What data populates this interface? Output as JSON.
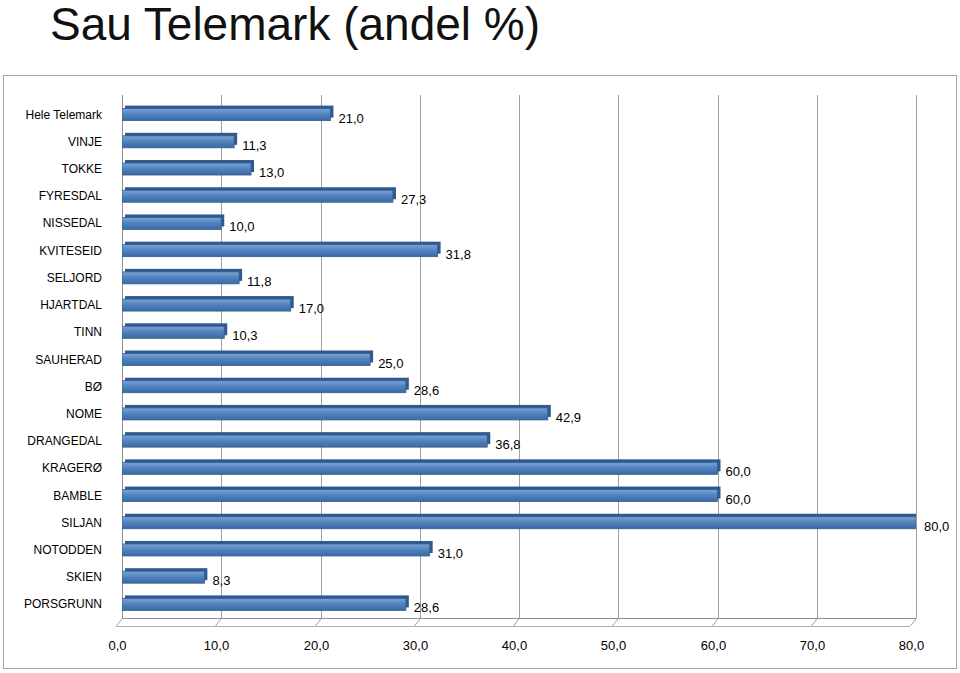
{
  "chart_data": {
    "type": "bar",
    "title": "Sau Telemark (andel %)",
    "orientation": "horizontal",
    "categories": [
      "Hele Telemark",
      "VINJE",
      "TOKKE",
      "FYRESDAL",
      "NISSEDAL",
      "KVITESEID",
      "SELJORD",
      "HJARTDAL",
      "TINN",
      "SAUHERAD",
      "BØ",
      "NOME",
      "DRANGEDAL",
      "KRAGERØ",
      "BAMBLE",
      "SILJAN",
      "NOTODDEN",
      "SKIEN",
      "PORSGRUNN"
    ],
    "values": [
      21.0,
      11.3,
      13.0,
      27.3,
      10.0,
      31.8,
      11.8,
      17.0,
      10.3,
      25.0,
      28.6,
      42.9,
      36.8,
      60.0,
      60.0,
      80.0,
      31.0,
      8.3,
      28.6
    ],
    "value_labels": [
      "21,0",
      "11,3",
      "13,0",
      "27,3",
      "10,0",
      "31,8",
      "11,8",
      "17,0",
      "10,3",
      "25,0",
      "28,6",
      "42,9",
      "36,8",
      "60,0",
      "60,0",
      "80,0",
      "31,0",
      "8,3",
      "28,6"
    ],
    "color": "#4f81bd",
    "data_labels": true,
    "grid": true,
    "xlim": [
      0,
      80
    ],
    "xticks": [
      {
        "value": 0,
        "label": "0,0"
      },
      {
        "value": 10,
        "label": "10,0"
      },
      {
        "value": 20,
        "label": "20,0"
      },
      {
        "value": 30,
        "label": "30,0"
      },
      {
        "value": 40,
        "label": "40,0"
      },
      {
        "value": 50,
        "label": "50,0"
      },
      {
        "value": 60,
        "label": "60,0"
      },
      {
        "value": 70,
        "label": "70,0"
      },
      {
        "value": 80,
        "label": "80,0"
      }
    ]
  }
}
